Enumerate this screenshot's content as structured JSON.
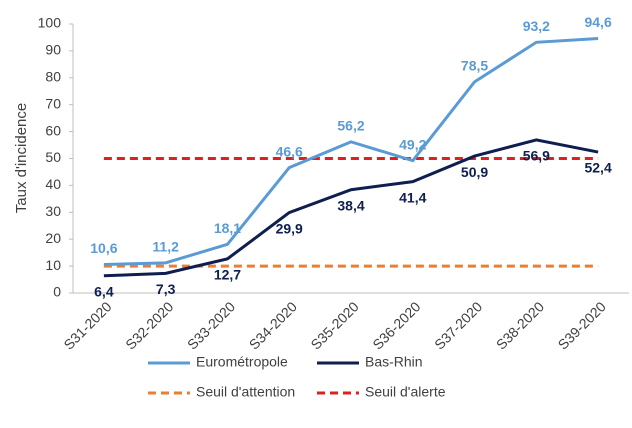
{
  "chart_data": {
    "type": "line",
    "ylabel": "Taux d'incidence",
    "categories": [
      "S31-2020",
      "S32-2020",
      "S33-2020",
      "S34-2020",
      "S35-2020",
      "S36-2020",
      "S37-2020",
      "S38-2020",
      "S39-2020"
    ],
    "series": [
      {
        "name": "Eurométropole",
        "color": "#5b9bd5",
        "values": [
          10.6,
          11.2,
          18.1,
          46.6,
          56.2,
          49.2,
          78.5,
          93.2,
          94.6
        ],
        "value_labels": [
          "10,6",
          "11,2",
          "18,1",
          "46,6",
          "56,2",
          "49,2",
          "78,5",
          "93,2",
          "94,6"
        ],
        "label_position": "above"
      },
      {
        "name": "Bas-Rhin",
        "color": "#0e1e4f",
        "values": [
          6.4,
          7.3,
          12.7,
          29.9,
          38.4,
          41.4,
          50.9,
          56.9,
          52.4
        ],
        "value_labels": [
          "6,4",
          "7,3",
          "12,7",
          "29,9",
          "38,4",
          "41,4",
          "50,9",
          "56,9",
          "52,4"
        ],
        "label_position": "below"
      },
      {
        "name": "Seuil d'attention",
        "color": "#ed7d31",
        "dashed": true,
        "values": [
          10,
          10,
          10,
          10,
          10,
          10,
          10,
          10,
          10
        ]
      },
      {
        "name": "Seuil d'alerte",
        "color": "#e0201e",
        "dashed": true,
        "values": [
          50,
          50,
          50,
          50,
          50,
          50,
          50,
          50,
          50
        ]
      }
    ],
    "ylim": [
      0,
      100
    ],
    "yticks": [
      0,
      10,
      20,
      30,
      40,
      50,
      60,
      70,
      80,
      90,
      100
    ],
    "grid": false,
    "legend": "bottom"
  }
}
